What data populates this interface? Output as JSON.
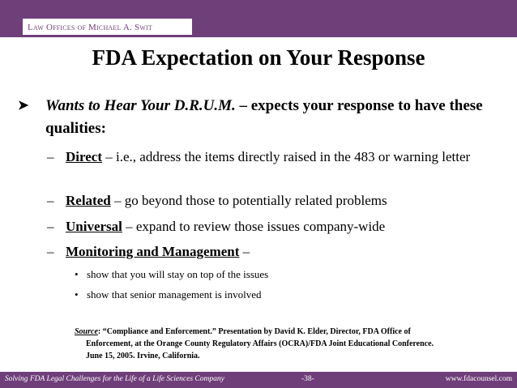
{
  "header": {
    "firm": "Law Offices of Michael A. Swit"
  },
  "title": "FDA Expectation on Your Response",
  "main_bullet": {
    "arrow_icon": "arrow-bullet-icon",
    "lead": "Wants to Hear Your D.R.U.M.",
    "text": " – expects your response to have these qualities:"
  },
  "qualities": [
    {
      "term": "Direct",
      "text": " – i.e., address the items directly raised in the 483 or warning letter"
    },
    {
      "term": "Related",
      "text": " – go beyond those to potentially related problems"
    },
    {
      "term": "Universal",
      "text": " – expand to review those issues company-wide"
    },
    {
      "term": "Monitoring and Management",
      "text": " –"
    }
  ],
  "sub_bullets": [
    "show that you will stay on top of the issues",
    "show that senior management is involved"
  ],
  "source": {
    "label": "Source",
    "line1": ":  “Compliance and Enforcement.”  Presentation by David K. Elder, Director, FDA Office of",
    "line2": "Enforcement, at the Orange County Regulatory Affairs (OCRA)/FDA Joint Educational Conference.",
    "line3": "June 15, 2005.  Irvine, California."
  },
  "footer": {
    "left": "Solving FDA Legal Challenges for the Life of a Life Sciences Company",
    "page": "-38-",
    "url": "www.fdacounsel.com"
  },
  "colors": {
    "brand": "#6f3f7a"
  }
}
